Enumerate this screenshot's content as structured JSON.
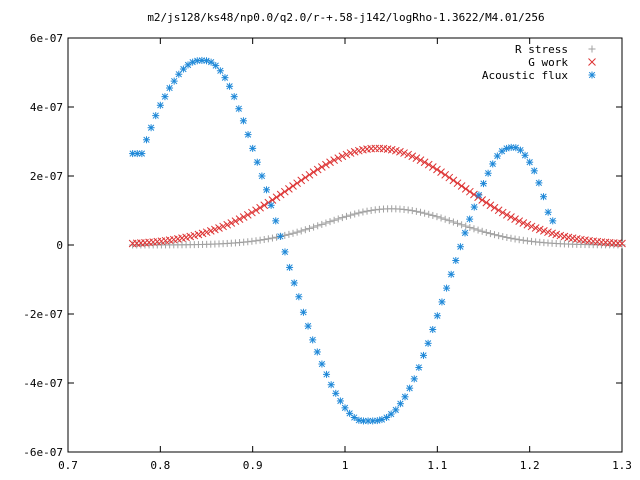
{
  "chart_data": {
    "type": "scatter",
    "title": "m2/js128/ks48/np0.0/q2.0/r-+.58-j142/logRho-1.3622/M4.01/256",
    "xlabel": "",
    "ylabel": "",
    "xlim": [
      0.7,
      1.3
    ],
    "ylim": [
      -6e-07,
      6e-07
    ],
    "x_ticks": [
      "0.7",
      "0.8",
      "0.9",
      "1",
      "1.1",
      "1.2",
      "1.3"
    ],
    "y_ticks": [
      "-6e-07",
      "-4e-07",
      "-2e-07",
      "0",
      "2e-07",
      "4e-07",
      "6e-07"
    ],
    "legend_position": "top-right",
    "series": [
      {
        "name": "R stress",
        "marker": "plus",
        "color": "#a0a0a0",
        "shape": {
          "type": "bump",
          "x_start": 0.77,
          "x_end": 1.3,
          "n": 120,
          "peak": 1.05e-07,
          "center": 1.05,
          "width": 0.1
        }
      },
      {
        "name": "G work",
        "marker": "cross",
        "color": "#dd3333",
        "shape": {
          "type": "bump",
          "x_start": 0.77,
          "x_end": 1.3,
          "n": 120,
          "peak": 2.8e-07,
          "center": 1.035,
          "width": 0.13
        }
      },
      {
        "name": "Acoustic flux",
        "marker": "star",
        "color": "#1e88d8",
        "points": [
          [
            0.77,
            2.65e-07
          ],
          [
            0.775,
            2.65e-07
          ],
          [
            0.78,
            2.65e-07
          ],
          [
            0.785,
            3.05e-07
          ],
          [
            0.79,
            3.4e-07
          ],
          [
            0.795,
            3.75e-07
          ],
          [
            0.8,
            4.05e-07
          ],
          [
            0.805,
            4.3e-07
          ],
          [
            0.81,
            4.55e-07
          ],
          [
            0.815,
            4.75e-07
          ],
          [
            0.82,
            4.95e-07
          ],
          [
            0.825,
            5.1e-07
          ],
          [
            0.83,
            5.22e-07
          ],
          [
            0.835,
            5.3e-07
          ],
          [
            0.84,
            5.34e-07
          ],
          [
            0.845,
            5.35e-07
          ],
          [
            0.85,
            5.34e-07
          ],
          [
            0.855,
            5.3e-07
          ],
          [
            0.86,
            5.2e-07
          ],
          [
            0.865,
            5.05e-07
          ],
          [
            0.87,
            4.85e-07
          ],
          [
            0.875,
            4.6e-07
          ],
          [
            0.88,
            4.3e-07
          ],
          [
            0.885,
            3.95e-07
          ],
          [
            0.89,
            3.6e-07
          ],
          [
            0.895,
            3.2e-07
          ],
          [
            0.9,
            2.8e-07
          ],
          [
            0.905,
            2.4e-07
          ],
          [
            0.91,
            2e-07
          ],
          [
            0.915,
            1.6e-07
          ],
          [
            0.92,
            1.15e-07
          ],
          [
            0.925,
            7e-08
          ],
          [
            0.93,
            2.5e-08
          ],
          [
            0.935,
            -2e-08
          ],
          [
            0.94,
            -6.5e-08
          ],
          [
            0.945,
            -1.1e-07
          ],
          [
            0.95,
            -1.5e-07
          ],
          [
            0.955,
            -1.95e-07
          ],
          [
            0.96,
            -2.35e-07
          ],
          [
            0.965,
            -2.75e-07
          ],
          [
            0.97,
            -3.1e-07
          ],
          [
            0.975,
            -3.45e-07
          ],
          [
            0.98,
            -3.75e-07
          ],
          [
            0.985,
            -4.05e-07
          ],
          [
            0.99,
            -4.3e-07
          ],
          [
            0.995,
            -4.52e-07
          ],
          [
            1.0,
            -4.72e-07
          ],
          [
            1.005,
            -4.88e-07
          ],
          [
            1.01,
            -5e-07
          ],
          [
            1.015,
            -5.08e-07
          ],
          [
            1.02,
            -5.1e-07
          ],
          [
            1.025,
            -5.1e-07
          ],
          [
            1.03,
            -5.1e-07
          ],
          [
            1.035,
            -5.09e-07
          ],
          [
            1.04,
            -5.06e-07
          ],
          [
            1.045,
            -5e-07
          ],
          [
            1.05,
            -4.9e-07
          ],
          [
            1.055,
            -4.78e-07
          ],
          [
            1.06,
            -4.6e-07
          ],
          [
            1.065,
            -4.4e-07
          ],
          [
            1.07,
            -4.15e-07
          ],
          [
            1.075,
            -3.88e-07
          ],
          [
            1.08,
            -3.55e-07
          ],
          [
            1.085,
            -3.2e-07
          ],
          [
            1.09,
            -2.85e-07
          ],
          [
            1.095,
            -2.45e-07
          ],
          [
            1.1,
            -2.05e-07
          ],
          [
            1.105,
            -1.65e-07
          ],
          [
            1.11,
            -1.25e-07
          ],
          [
            1.115,
            -8.5e-08
          ],
          [
            1.12,
            -4.5e-08
          ],
          [
            1.125,
            -5e-09
          ],
          [
            1.13,
            3.5e-08
          ],
          [
            1.135,
            7.5e-08
          ],
          [
            1.14,
            1.1e-07
          ],
          [
            1.145,
            1.45e-07
          ],
          [
            1.15,
            1.78e-07
          ],
          [
            1.155,
            2.08e-07
          ],
          [
            1.16,
            2.35e-07
          ],
          [
            1.165,
            2.58e-07
          ],
          [
            1.17,
            2.72e-07
          ],
          [
            1.175,
            2.8e-07
          ],
          [
            1.18,
            2.83e-07
          ],
          [
            1.185,
            2.82e-07
          ],
          [
            1.19,
            2.75e-07
          ],
          [
            1.195,
            2.6e-07
          ],
          [
            1.2,
            2.4e-07
          ],
          [
            1.205,
            2.15e-07
          ],
          [
            1.21,
            1.8e-07
          ],
          [
            1.215,
            1.4e-07
          ],
          [
            1.22,
            9.5e-08
          ],
          [
            1.225,
            7e-08
          ]
        ]
      }
    ]
  }
}
